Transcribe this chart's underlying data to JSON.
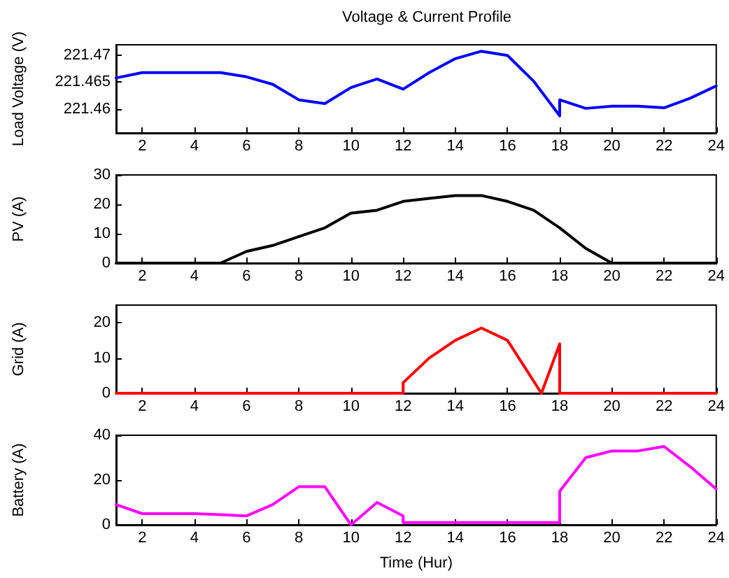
{
  "chart_data": [
    {
      "type": "line",
      "title": "Voltage & Current Profile",
      "ylabel": "Load Voltage (V)",
      "xlim": [
        1,
        24
      ],
      "xticks": [
        2,
        4,
        6,
        8,
        10,
        12,
        14,
        16,
        18,
        20,
        22,
        24
      ],
      "ylim": [
        221.4555,
        221.472
      ],
      "yticks": [
        221.46,
        221.465,
        221.47
      ],
      "grid": false,
      "marker": "none",
      "series": [
        {
          "color": "#0000ff",
          "x": [
            1,
            2,
            3,
            4,
            5,
            6,
            7,
            8,
            9,
            10,
            11,
            12,
            13,
            14,
            15,
            16,
            17,
            18,
            18,
            19,
            20,
            21,
            22,
            23,
            24
          ],
          "values": [
            221.4658,
            221.4668,
            221.4668,
            221.4668,
            221.4668,
            221.466,
            221.4646,
            221.4617,
            221.461,
            221.464,
            221.4656,
            221.4637,
            221.4668,
            221.4694,
            221.4708,
            221.47,
            221.4652,
            221.4587,
            221.4617,
            221.4601,
            221.4605,
            221.4605,
            221.4602,
            221.462,
            221.4643
          ]
        }
      ]
    },
    {
      "type": "line",
      "ylabel": "PV (A)",
      "xlim": [
        1,
        24
      ],
      "xticks": [
        2,
        4,
        6,
        8,
        10,
        12,
        14,
        16,
        18,
        20,
        22,
        24
      ],
      "ylim": [
        0,
        30
      ],
      "yticks": [
        0,
        10,
        20,
        30
      ],
      "grid": false,
      "marker": "none",
      "series": [
        {
          "color": "#000000",
          "x": [
            1,
            2,
            3,
            4,
            5,
            6,
            7,
            8,
            9,
            10,
            11,
            12,
            13,
            14,
            15,
            16,
            17,
            18,
            19,
            20,
            21,
            22,
            23,
            24
          ],
          "values": [
            0,
            0,
            0,
            0,
            0,
            4,
            6,
            9,
            12,
            17,
            18,
            21,
            22,
            23,
            23,
            21,
            18,
            12,
            5,
            0,
            0,
            0,
            0,
            0
          ]
        }
      ]
    },
    {
      "type": "line",
      "ylabel": "Grid (A)",
      "xlim": [
        1,
        24
      ],
      "xticks": [
        2,
        4,
        6,
        8,
        10,
        12,
        14,
        16,
        18,
        20,
        22,
        24
      ],
      "ylim": [
        0,
        25
      ],
      "yticks": [
        0,
        10,
        20
      ],
      "grid": false,
      "marker": "none",
      "series": [
        {
          "color": "#ff0000",
          "x": [
            1,
            2,
            3,
            4,
            5,
            6,
            7,
            8,
            9,
            10,
            11,
            12,
            12,
            13,
            14,
            15,
            16,
            17.3,
            18,
            18,
            19,
            20,
            21,
            22,
            23,
            24
          ],
          "values": [
            0,
            0,
            0,
            0,
            0,
            0,
            0,
            0,
            0,
            0,
            0,
            0,
            3,
            10,
            15,
            18.5,
            15,
            0,
            14,
            0,
            0,
            0,
            0,
            0,
            0,
            0
          ]
        }
      ]
    },
    {
      "type": "line",
      "ylabel": "Battery (A)",
      "xlabel": "Time (Hur)",
      "xlim": [
        1,
        24
      ],
      "xticks": [
        2,
        4,
        6,
        8,
        10,
        12,
        14,
        16,
        18,
        20,
        22,
        24
      ],
      "ylim": [
        0,
        40
      ],
      "yticks": [
        0,
        20,
        40
      ],
      "grid": false,
      "marker": "none",
      "series": [
        {
          "color": "#ff00ff",
          "x": [
            1,
            2,
            3,
            4,
            5,
            6,
            7,
            8,
            9,
            10,
            11,
            12,
            12,
            13,
            14,
            15,
            16,
            17,
            18,
            18,
            19,
            20,
            21,
            22,
            23,
            24
          ],
          "values": [
            9,
            5,
            5,
            5,
            4.5,
            4,
            9,
            17,
            17,
            0,
            10,
            4,
            1,
            1,
            1,
            1,
            1,
            1,
            1,
            15,
            30,
            33,
            33,
            35,
            26,
            16
          ]
        }
      ]
    }
  ]
}
